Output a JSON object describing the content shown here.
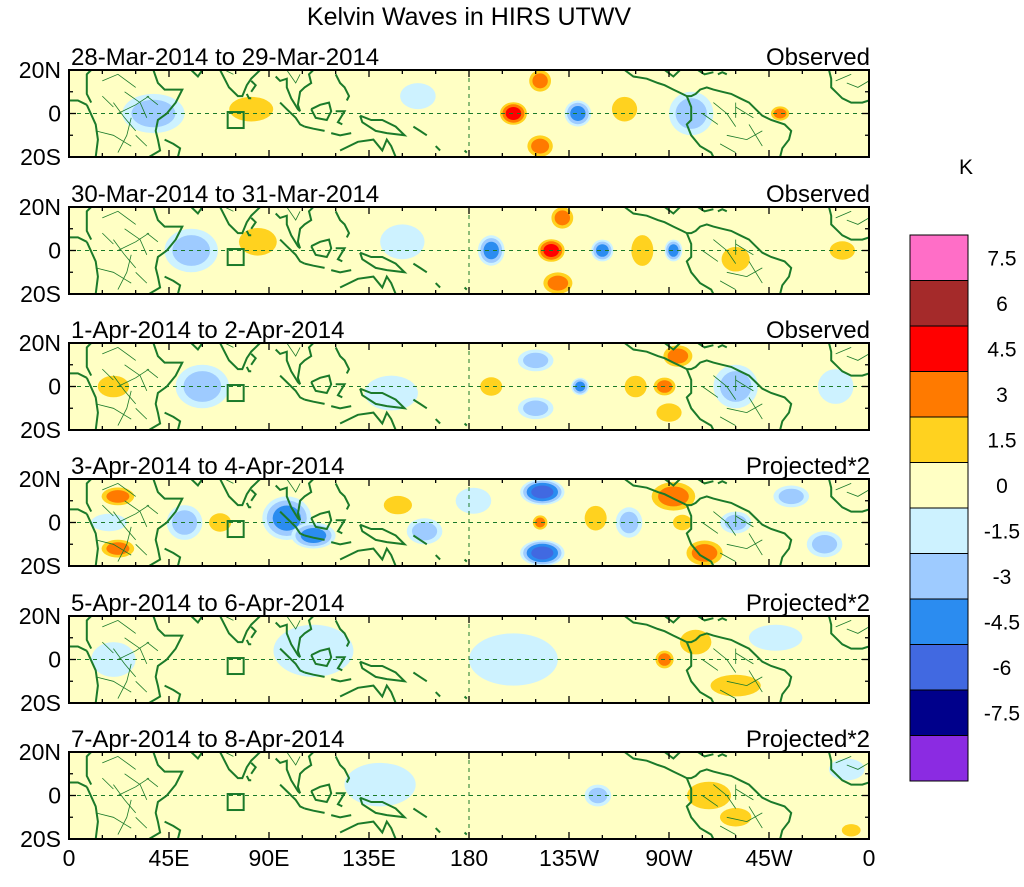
{
  "chart_data": {
    "type": "heatmap",
    "title": "Kelvin Waves in HIRS UTWV",
    "colorbar": {
      "unit": "K",
      "levels": [
        "7.5",
        "6",
        "4.5",
        "3",
        "1.5",
        "0",
        "-1.5",
        "-3",
        "-4.5",
        "-6",
        "-7.5"
      ],
      "colors": [
        "#ff6ec7",
        "#a52a2a",
        "#ff0000",
        "#ff7a00",
        "#ffd21f",
        "#ffffc4",
        "#cdf2ff",
        "#9ecbff",
        "#2b8cf0",
        "#4169e1",
        "#00008b",
        "#8b2be2"
      ]
    },
    "x_ticks": [
      "0",
      "45E",
      "90E",
      "135E",
      "180",
      "135W",
      "90W",
      "45W",
      "0"
    ],
    "y_ticks": [
      "20N",
      "0",
      "20S"
    ],
    "xlim": [
      0,
      360
    ],
    "ylim": [
      -20,
      20
    ],
    "panels": [
      {
        "date_range": "28-Mar-2014 to 29-Mar-2014",
        "mode": "Observed",
        "blobs": [
          {
            "lon": 38,
            "lat": 0,
            "w": 14,
            "h": 9,
            "v": -2.2
          },
          {
            "lon": 82,
            "lat": 2,
            "w": 14,
            "h": 8,
            "v": 1.8
          },
          {
            "lon": 135,
            "lat": -6,
            "w": 12,
            "h": 7,
            "v": 1.2
          },
          {
            "lon": 157,
            "lat": 8,
            "w": 8,
            "h": 6,
            "v": -1.3
          },
          {
            "lon": 200,
            "lat": 0,
            "w": 7,
            "h": 6,
            "v": 5.6
          },
          {
            "lon": 212,
            "lat": 15,
            "w": 6,
            "h": 6,
            "v": 4.2
          },
          {
            "lon": 212,
            "lat": -15,
            "w": 7,
            "h": 6,
            "v": 4.4
          },
          {
            "lon": 229,
            "lat": 0,
            "w": 6,
            "h": 6,
            "v": -3.4
          },
          {
            "lon": 250,
            "lat": 2,
            "w": 8,
            "h": 8,
            "v": 1.8
          },
          {
            "lon": 280,
            "lat": 0,
            "w": 10,
            "h": 10,
            "v": -2.0
          },
          {
            "lon": 320,
            "lat": 0,
            "w": 5,
            "h": 4,
            "v": 3.6
          }
        ]
      },
      {
        "date_range": "30-Mar-2014 to 31-Mar-2014",
        "mode": "Observed",
        "blobs": [
          {
            "lon": 55,
            "lat": 0,
            "w": 12,
            "h": 10,
            "v": -2.0
          },
          {
            "lon": 85,
            "lat": 4,
            "w": 12,
            "h": 9,
            "v": 1.7
          },
          {
            "lon": 120,
            "lat": -6,
            "w": 12,
            "h": 8,
            "v": 1.5
          },
          {
            "lon": 150,
            "lat": 4,
            "w": 10,
            "h": 8,
            "v": -1.2
          },
          {
            "lon": 190,
            "lat": 0,
            "w": 6,
            "h": 7,
            "v": -4.0
          },
          {
            "lon": 217,
            "lat": 0,
            "w": 7,
            "h": 6,
            "v": 5.8
          },
          {
            "lon": 222,
            "lat": 15,
            "w": 6,
            "h": 6,
            "v": 4.0
          },
          {
            "lon": 220,
            "lat": -15,
            "w": 8,
            "h": 6,
            "v": 3.4
          },
          {
            "lon": 240,
            "lat": 0,
            "w": 5,
            "h": 5,
            "v": -3.2
          },
          {
            "lon": 258,
            "lat": 0,
            "w": 7,
            "h": 10,
            "v": 1.8
          },
          {
            "lon": 272,
            "lat": 0,
            "w": 4,
            "h": 5,
            "v": -3.3
          },
          {
            "lon": 300,
            "lat": -4,
            "w": 9,
            "h": 8,
            "v": 1.6
          },
          {
            "lon": 348,
            "lat": 0,
            "w": 8,
            "h": 6,
            "v": 2.2
          }
        ]
      },
      {
        "date_range": "1-Apr-2014 to 2-Apr-2014",
        "mode": "Observed",
        "blobs": [
          {
            "lon": 20,
            "lat": 0,
            "w": 10,
            "h": 7,
            "v": 1.6
          },
          {
            "lon": 60,
            "lat": 0,
            "w": 12,
            "h": 10,
            "v": -1.8
          },
          {
            "lon": 100,
            "lat": 5,
            "w": 12,
            "h": 9,
            "v": 1.4
          },
          {
            "lon": 145,
            "lat": -3,
            "w": 12,
            "h": 8,
            "v": -1.5
          },
          {
            "lon": 190,
            "lat": 0,
            "w": 7,
            "h": 6,
            "v": 1.8
          },
          {
            "lon": 210,
            "lat": 12,
            "w": 8,
            "h": 5,
            "v": -1.6
          },
          {
            "lon": 210,
            "lat": -10,
            "w": 8,
            "h": 5,
            "v": -1.6
          },
          {
            "lon": 230,
            "lat": 0,
            "w": 4,
            "h": 4,
            "v": -3.2
          },
          {
            "lon": 255,
            "lat": 0,
            "w": 7,
            "h": 7,
            "v": 1.8
          },
          {
            "lon": 268,
            "lat": 0,
            "w": 6,
            "h": 5,
            "v": 4.0
          },
          {
            "lon": 274,
            "lat": 14,
            "w": 8,
            "h": 6,
            "v": 3.2
          },
          {
            "lon": 270,
            "lat": -12,
            "w": 8,
            "h": 6,
            "v": 2.4
          },
          {
            "lon": 300,
            "lat": 0,
            "w": 10,
            "h": 10,
            "v": -2.0
          },
          {
            "lon": 345,
            "lat": 0,
            "w": 8,
            "h": 8,
            "v": -1.3
          }
        ]
      },
      {
        "date_range": "3-Apr-2014 to 4-Apr-2014",
        "mode": "Projected*2",
        "blobs": [
          {
            "lon": 22,
            "lat": 12,
            "w": 9,
            "h": 5,
            "v": 4.0
          },
          {
            "lon": 22,
            "lat": -12,
            "w": 9,
            "h": 5,
            "v": 4.0
          },
          {
            "lon": 18,
            "lat": 0,
            "w": 8,
            "h": 4,
            "v": -1.4
          },
          {
            "lon": 52,
            "lat": 0,
            "w": 8,
            "h": 8,
            "v": -2.0
          },
          {
            "lon": 68,
            "lat": 0,
            "w": 7,
            "h": 6,
            "v": 2.4
          },
          {
            "lon": 98,
            "lat": 2,
            "w": 11,
            "h": 10,
            "v": -3.8
          },
          {
            "lon": 110,
            "lat": -6,
            "w": 10,
            "h": 6,
            "v": -3.2
          },
          {
            "lon": 148,
            "lat": 8,
            "w": 9,
            "h": 6,
            "v": 2.0
          },
          {
            "lon": 160,
            "lat": -4,
            "w": 8,
            "h": 6,
            "v": -1.8
          },
          {
            "lon": 182,
            "lat": 10,
            "w": 8,
            "h": 6,
            "v": -1.4
          },
          {
            "lon": 213,
            "lat": 14,
            "w": 10,
            "h": 6,
            "v": -5.0
          },
          {
            "lon": 213,
            "lat": -14,
            "w": 10,
            "h": 6,
            "v": -5.0
          },
          {
            "lon": 212,
            "lat": 0,
            "w": 4,
            "h": 4,
            "v": 3.4
          },
          {
            "lon": 237,
            "lat": 2,
            "w": 7,
            "h": 8,
            "v": 1.6
          },
          {
            "lon": 252,
            "lat": 0,
            "w": 6,
            "h": 7,
            "v": -1.8
          },
          {
            "lon": 272,
            "lat": 12,
            "w": 12,
            "h": 8,
            "v": 3.4
          },
          {
            "lon": 286,
            "lat": -14,
            "w": 10,
            "h": 7,
            "v": 4.0
          },
          {
            "lon": 276,
            "lat": 0,
            "w": 6,
            "h": 5,
            "v": 2.4
          },
          {
            "lon": 300,
            "lat": 0,
            "w": 7,
            "h": 5,
            "v": -2.2
          },
          {
            "lon": 325,
            "lat": 12,
            "w": 8,
            "h": 5,
            "v": -2.0
          },
          {
            "lon": 340,
            "lat": -10,
            "w": 8,
            "h": 6,
            "v": -1.8
          }
        ]
      },
      {
        "date_range": "5-Apr-2014 to 6-Apr-2014",
        "mode": "Projected*2",
        "blobs": [
          {
            "lon": 20,
            "lat": 0,
            "w": 10,
            "h": 8,
            "v": -1.2
          },
          {
            "lon": 40,
            "lat": -8,
            "w": 10,
            "h": 6,
            "v": 1.4
          },
          {
            "lon": 38,
            "lat": 10,
            "w": 10,
            "h": 6,
            "v": 1.3
          },
          {
            "lon": 110,
            "lat": 4,
            "w": 18,
            "h": 12,
            "v": -1.0
          },
          {
            "lon": 200,
            "lat": 0,
            "w": 20,
            "h": 12,
            "v": -1.0
          },
          {
            "lon": 268,
            "lat": 0,
            "w": 5,
            "h": 5,
            "v": 4.0
          },
          {
            "lon": 282,
            "lat": 8,
            "w": 10,
            "h": 8,
            "v": 2.2
          },
          {
            "lon": 300,
            "lat": -12,
            "w": 16,
            "h": 7,
            "v": 2.2
          },
          {
            "lon": 318,
            "lat": 10,
            "w": 12,
            "h": 6,
            "v": -1.2
          }
        ]
      },
      {
        "date_range": "7-Apr-2014 to 8-Apr-2014",
        "mode": "Projected*2",
        "blobs": [
          {
            "lon": 50,
            "lat": -12,
            "w": 12,
            "h": 6,
            "v": 1.3
          },
          {
            "lon": 60,
            "lat": 10,
            "w": 12,
            "h": 6,
            "v": 1.3
          },
          {
            "lon": 140,
            "lat": 5,
            "w": 16,
            "h": 10,
            "v": -1.0
          },
          {
            "lon": 238,
            "lat": 0,
            "w": 6,
            "h": 5,
            "v": -1.8
          },
          {
            "lon": 288,
            "lat": 0,
            "w": 14,
            "h": 9,
            "v": 2.3
          },
          {
            "lon": 300,
            "lat": -10,
            "w": 10,
            "h": 6,
            "v": 1.8
          },
          {
            "lon": 350,
            "lat": 12,
            "w": 8,
            "h": 5,
            "v": -1.3
          },
          {
            "lon": 352,
            "lat": -16,
            "w": 6,
            "h": 4,
            "v": 1.8
          }
        ]
      }
    ]
  }
}
